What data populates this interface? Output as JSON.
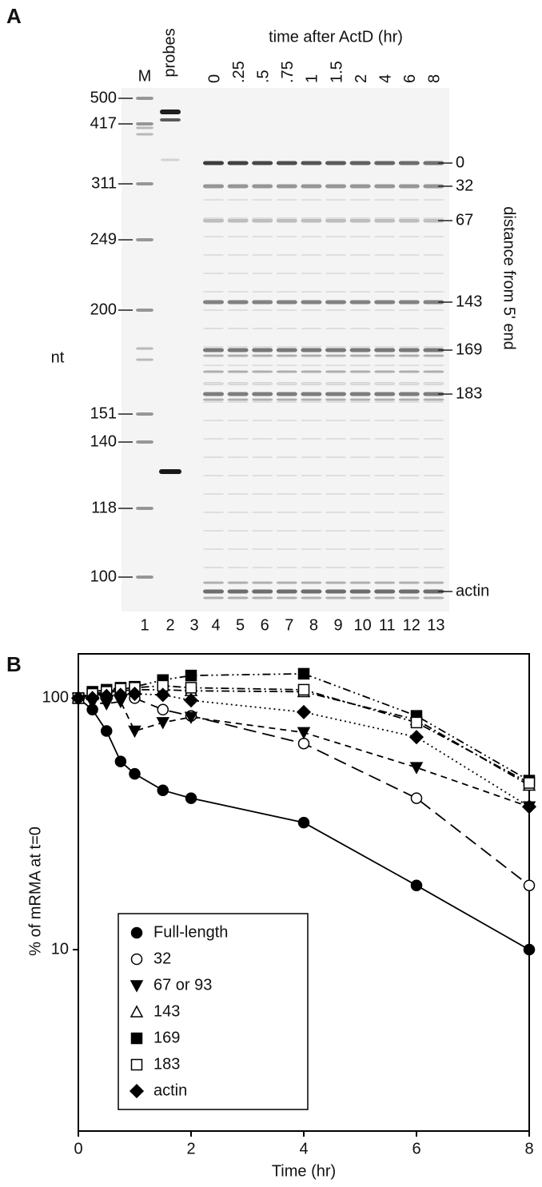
{
  "panel_a": {
    "label": "A",
    "lane_headers": {
      "marker": "M",
      "probes": "probes"
    },
    "time_title": "time after ActD (hr)",
    "times": [
      "0",
      ".25",
      ".5",
      ".75",
      "1",
      "1.5",
      "2",
      "4",
      "6",
      "8"
    ],
    "size_markers": [
      500,
      417,
      311,
      249,
      200,
      151,
      140,
      118,
      100
    ],
    "size_unit": "nt",
    "band_labels": [
      "0",
      "32",
      "67",
      "143",
      "169",
      "183",
      "actin"
    ],
    "band_axis_title": "distance from 5' end",
    "lane_numbers": [
      1,
      2,
      3,
      4,
      5,
      6,
      7,
      8,
      9,
      10,
      11,
      12,
      13
    ]
  },
  "chart_data": {
    "type": "line",
    "panel_label": "B",
    "xlabel": "Time (hr)",
    "ylabel": "% of mRMA at t=0",
    "x": [
      0,
      0.25,
      0.5,
      0.75,
      1,
      1.5,
      2,
      4,
      6,
      8
    ],
    "xlim": [
      0,
      8
    ],
    "xticks": [
      0,
      2,
      4,
      6,
      8
    ],
    "ylim": [
      1.9,
      150
    ],
    "yticks": [
      10,
      100
    ],
    "log_scale": true,
    "legend": "lower left",
    "series": [
      {
        "name": "Full-length",
        "color": "#000000",
        "marker": "circle-filled",
        "dash": "solid",
        "values": [
          100,
          90,
          74,
          56,
          50,
          43,
          40,
          32,
          18,
          10
        ]
      },
      {
        "name": "32",
        "color": "#000000",
        "marker": "circle-open",
        "dash": "long",
        "values": [
          100,
          104,
          102,
          106,
          100,
          90,
          85,
          66,
          40,
          18
        ]
      },
      {
        "name": " 67 or 93",
        "color": "#000000",
        "marker": "triangle-down-filled",
        "dash": "dashed",
        "values": [
          100,
          96,
          95,
          97,
          74,
          80,
          84,
          73,
          53,
          37
        ]
      },
      {
        "name": "143",
        "color": "#000000",
        "marker": "triangle-up-open",
        "dash": "dashdot",
        "values": [
          100,
          103,
          105,
          107,
          108,
          108,
          107,
          106,
          82,
          45
        ]
      },
      {
        "name": "169",
        "color": "#000000",
        "marker": "square-filled",
        "dash": "dashdotdot",
        "values": [
          100,
          106,
          108,
          110,
          111,
          118,
          123,
          125,
          85,
          47
        ]
      },
      {
        "name": "183",
        "color": "#000000",
        "marker": "square-open",
        "dash": "dashdot",
        "values": [
          100,
          104,
          106,
          109,
          110,
          112,
          110,
          108,
          80,
          46
        ]
      },
      {
        "name": "actin",
        "color": "#000000",
        "marker": "diamond-filled",
        "dash": "dotted",
        "values": [
          100,
          100,
          102,
          103,
          104,
          103,
          98,
          88,
          70,
          37
        ]
      }
    ]
  }
}
